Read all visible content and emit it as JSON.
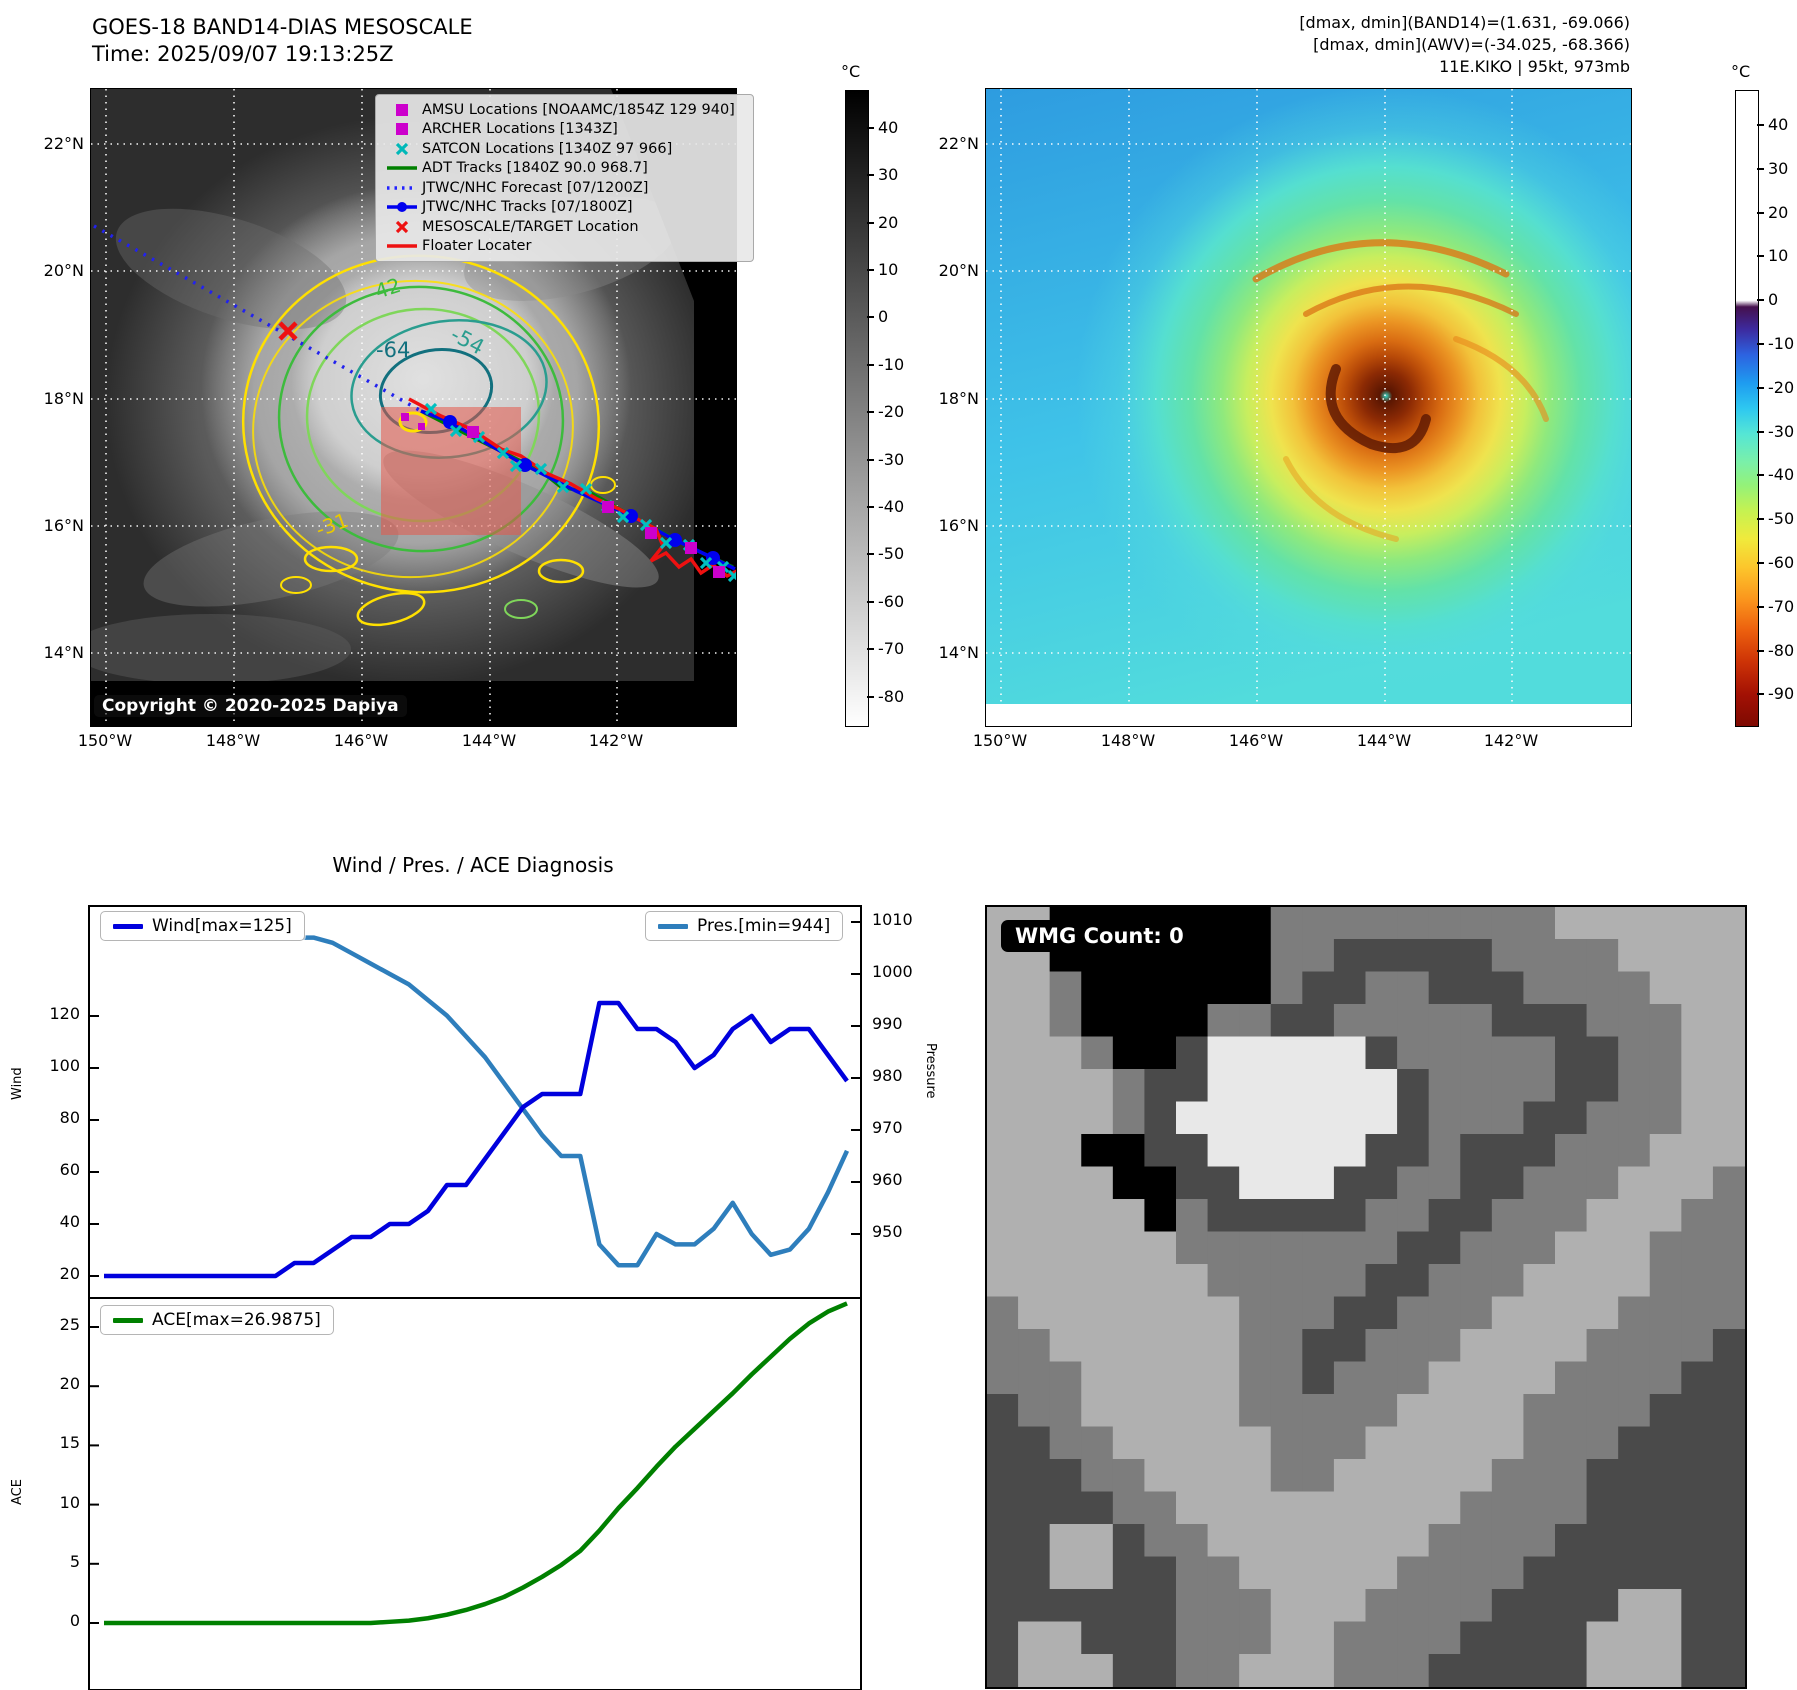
{
  "header_left": {
    "title": "GOES-18 BAND14-DIAS MESOSCALE",
    "time": "Time: 2025/09/07 19:13:25Z"
  },
  "header_right": {
    "line1": "[dmax, dmin](BAND14)=(1.631, -69.066)",
    "line2": "[dmax, dmin](AWV)=(-34.025, -68.366)",
    "line3": "11E.KIKO | 95kt, 973mb"
  },
  "band14_map": {
    "lat_ticks": [
      "22°N",
      "20°N",
      "18°N",
      "16°N",
      "14°N"
    ],
    "lon_ticks": [
      "150°W",
      "148°W",
      "146°W",
      "144°W",
      "142°W"
    ],
    "copyright": "Copyright © 2020-2025 Dapiya",
    "contour_labels": [
      "-64",
      "-54",
      "-42",
      "-31"
    ],
    "legend": [
      {
        "marker": "square",
        "color": "#cc00cc",
        "label": "AMSU Locations [NOAAMC/1854Z 129 940]"
      },
      {
        "marker": "square",
        "color": "#cc00cc",
        "label": "ARCHER Locations [1343Z]"
      },
      {
        "marker": "x",
        "color": "#00b8b8",
        "label": "SATCON Locations [1340Z 97 966]"
      },
      {
        "marker": "line",
        "color": "#008000",
        "label": "ADT Tracks [1840Z 90.0 968.7]"
      },
      {
        "marker": "dotted",
        "color": "#2222ff",
        "label": "JTWC/NHC Forecast [07/1200Z]"
      },
      {
        "marker": "line-dot",
        "color": "#0000ee",
        "label": "JTWC/NHC Tracks [07/1800Z]"
      },
      {
        "marker": "x",
        "color": "#ee1111",
        "label": "MESOSCALE/TARGET Location"
      },
      {
        "marker": "line",
        "color": "#ee1111",
        "label": "Floater Locater"
      }
    ],
    "colorbar": {
      "unit": "°C",
      "ticks": [
        40,
        30,
        20,
        10,
        0,
        -10,
        -20,
        -30,
        -40,
        -50,
        -60,
        -70,
        -80
      ]
    }
  },
  "awv_map": {
    "lat_ticks": [
      "22°N",
      "20°N",
      "18°N",
      "16°N",
      "14°N"
    ],
    "lon_ticks": [
      "150°W",
      "148°W",
      "146°W",
      "144°W",
      "142°W"
    ],
    "colorbar": {
      "unit": "°C",
      "ticks": [
        40,
        30,
        20,
        10,
        0,
        -10,
        -20,
        -30,
        -40,
        -50,
        -60,
        -70,
        -80,
        -90
      ]
    }
  },
  "diagnosis": {
    "title": "Wind / Pres. / ACE Diagnosis",
    "wind_axis_label": "Wind",
    "pres_axis_label": "Pressure",
    "ace_axis_label": "ACE"
  },
  "chart_data": [
    {
      "type": "line",
      "title": "Wind / Pres. / ACE Diagnosis",
      "series": [
        {
          "name": "Wind[max=125]",
          "color": "#0000dd",
          "values": [
            20,
            20,
            20,
            20,
            20,
            20,
            20,
            20,
            20,
            20,
            25,
            25,
            30,
            35,
            35,
            40,
            40,
            45,
            55,
            55,
            65,
            75,
            85,
            90,
            90,
            90,
            125,
            125,
            115,
            115,
            110,
            100,
            105,
            115,
            120,
            110,
            115,
            115,
            105,
            95
          ]
        },
        {
          "name": "Pres.[min=944]",
          "color": "#2e7ebc",
          "values": [
            1008,
            1008,
            1008,
            1008,
            1008,
            1008,
            1008,
            1008,
            1008,
            1008,
            1007,
            1007,
            1006,
            1004,
            1002,
            1000,
            998,
            995,
            992,
            988,
            984,
            979,
            974,
            969,
            965,
            965,
            948,
            944,
            944,
            950,
            948,
            948,
            951,
            956,
            950,
            946,
            947,
            951,
            958,
            966
          ]
        }
      ],
      "y_left": {
        "label": "Wind",
        "ticks": [
          20,
          40,
          60,
          80,
          100,
          120
        ]
      },
      "y_right": {
        "label": "Pressure",
        "ticks": [
          1010,
          1000,
          990,
          980,
          970,
          960,
          950
        ]
      },
      "grid": false,
      "legend_position": "wind top-left, pressure top-right"
    },
    {
      "type": "line",
      "series": [
        {
          "name": "ACE[max=26.9875]",
          "color": "#008000",
          "values": [
            0,
            0,
            0,
            0,
            0,
            0,
            0,
            0,
            0,
            0,
            0,
            0,
            0,
            0,
            0,
            0.1,
            0.2,
            0.4,
            0.7,
            1.1,
            1.6,
            2.2,
            3.0,
            3.9,
            4.9,
            6.1,
            7.8,
            9.7,
            11.4,
            13.2,
            14.9,
            16.4,
            17.9,
            19.4,
            21.0,
            22.5,
            24.0,
            25.3,
            26.3,
            26.9875
          ]
        }
      ],
      "y_left": {
        "label": "ACE",
        "ticks": [
          0,
          5,
          10,
          15,
          20,
          25
        ]
      },
      "grid": false,
      "legend_position": "top-left"
    }
  ],
  "wmg": {
    "label": "WMG Count: 0",
    "palette": {
      "K": "#000000",
      "D": "#4a4a4a",
      "M": "#7d7d7d",
      "L": "#b0b0b0",
      "W": "#e8e8e8"
    },
    "grid": [
      "LLKKKKKKKMMMMMMMMMLLLLLL",
      "LLKKKKKKKMMDDDDDMMMMLLLL",
      "LLMKKKKKKMDDMMDDDMMMMLLL",
      "LLMKKKKMMDDMMMMMDDDMMMLL",
      "LLLMKKDWWWWWDMMMMMDDMMLL",
      "LLLLMDDWWWWWWDMMMMDDMMLL",
      "LLLLMDWWWWWWWDMMMDDMMMLL",
      "LLLKKDDWWWWWDDMDDDMMMLLL",
      "LLLLKKDDWWWDDMMDDMMMLLLM",
      "LLLLLKMDDDDDMMDDMMMLLLMM",
      "LLLLLLMMMMMMMDDMMMLLLMMM",
      "LLLLLLLMMMMMDDMMMLLLLMMM",
      "MLLLLLLLMMMDDMMMLLLLMMMM",
      "MMLLLLLLMMDDMMMLLLLMMMMD",
      "MMMLLLLLMMDMMMLLLLMMMMDD",
      "DMMLLLLLMMMMMLLLLMMMMDDD",
      "DDMMLLLLLMMMLLLLLMMMDDDD",
      "DDDMMLLLLMMLLLLLMMMDDDDD",
      "DDDDMMLLLLLLLLLMMMMDDDDD",
      "DDLLDMMLLLLLLLMMMMDDDDDD",
      "DDLLDDMMLLLLLMMMMDDDDDDD",
      "DDDDDDMMMLLLMMMMDDDDLLDD",
      "DLLDDDMMMLLMMMMDDDDLLLDD",
      "DLLLDDMMLLLMMMDDDDDLLLDD"
    ]
  }
}
